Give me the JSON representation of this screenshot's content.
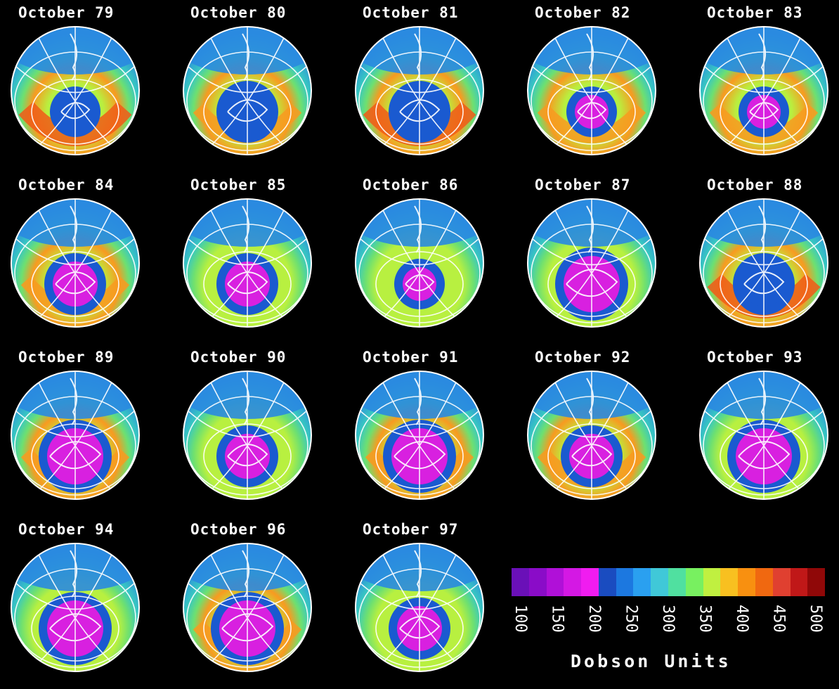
{
  "panels": [
    {
      "title": "October 79",
      "hole": "blue-small",
      "ring": "strong"
    },
    {
      "title": "October 80",
      "hole": "blue",
      "ring": "medium"
    },
    {
      "title": "October 81",
      "hole": "blue",
      "ring": "strong"
    },
    {
      "title": "October 82",
      "hole": "magenta-small",
      "ring": "medium"
    },
    {
      "title": "October 83",
      "hole": "magenta-small",
      "ring": "medium"
    },
    {
      "title": "October 84",
      "hole": "magenta",
      "ring": "medium"
    },
    {
      "title": "October 85",
      "hole": "magenta",
      "ring": "weak"
    },
    {
      "title": "October 86",
      "hole": "magenta-small",
      "ring": "weak"
    },
    {
      "title": "October 87",
      "hole": "magenta-large",
      "ring": "weak"
    },
    {
      "title": "October 88",
      "hole": "blue",
      "ring": "strong"
    },
    {
      "title": "October 89",
      "hole": "magenta-large",
      "ring": "medium"
    },
    {
      "title": "October 90",
      "hole": "magenta",
      "ring": "weak"
    },
    {
      "title": "October 91",
      "hole": "magenta-large",
      "ring": "medium"
    },
    {
      "title": "October 92",
      "hole": "magenta",
      "ring": "medium"
    },
    {
      "title": "October 93",
      "hole": "magenta-large",
      "ring": "weak"
    },
    {
      "title": "October 94",
      "hole": "magenta-large",
      "ring": "weak"
    },
    {
      "title": "October 96",
      "hole": "magenta-large",
      "ring": "medium"
    },
    {
      "title": "October 97",
      "hole": "magenta",
      "ring": "weak"
    }
  ],
  "legend": {
    "units": "Dobson Units",
    "ticks": [
      "100",
      "150",
      "200",
      "250",
      "300",
      "350",
      "400",
      "450",
      "500"
    ],
    "colors": [
      "#6a10b8",
      "#8a0cc8",
      "#b010d8",
      "#d418e4",
      "#f01cf0",
      "#1a4cc0",
      "#1c78e0",
      "#2aa0f0",
      "#40c8d8",
      "#50e0a0",
      "#78f060",
      "#c0f040",
      "#f8c020",
      "#f89010",
      "#f06810",
      "#e04030",
      "#c01818",
      "#900808"
    ]
  },
  "colors": {
    "background": "#000000",
    "ocean_blue": "#2a8ae0",
    "teal": "#38c8c0",
    "green": "#6ee070",
    "yellow_green": "#b8f040",
    "orange": "#f89a20",
    "red_orange": "#f05a18",
    "hole_blue": "#1a5ad0",
    "hole_magenta": "#d820e0",
    "coastline": "#ffffff"
  }
}
